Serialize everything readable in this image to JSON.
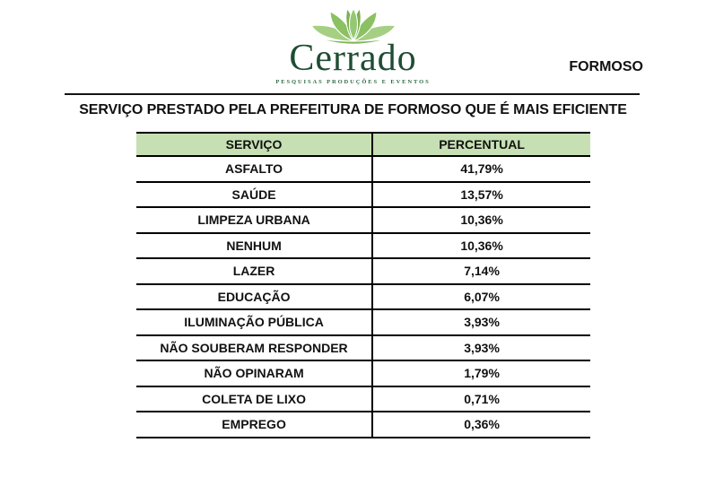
{
  "logo": {
    "wordmark": "Cerrado",
    "tagline": "PESQUISAS PRODUÇÕES E EVENTOS",
    "wordmark_color": "#1f4d33",
    "tagline_color": "#2e6b46",
    "lotus_colors": {
      "outer": "#a5cf82",
      "mid": "#8cc163",
      "inner": "#79b24f",
      "center": "#96c873",
      "base": "#7fb559"
    }
  },
  "region_label": "FORMOSO",
  "title": "SERVIÇO PRESTADO PELA PREFEITURA DE FORMOSO QUE É MAIS EFICIENTE",
  "table": {
    "header_bg": "#c6e0b4",
    "columns": [
      "SERVIÇO",
      "PERCENTUAL"
    ],
    "rows": [
      {
        "service": "ASFALTO",
        "percentual": "41,79%"
      },
      {
        "service": "SAÚDE",
        "percentual": "13,57%"
      },
      {
        "service": "LIMPEZA URBANA",
        "percentual": "10,36%"
      },
      {
        "service": "NENHUM",
        "percentual": "10,36%"
      },
      {
        "service": "LAZER",
        "percentual": "7,14%"
      },
      {
        "service": "EDUCAÇÃO",
        "percentual": "6,07%"
      },
      {
        "service": "ILUMINAÇÃO PÚBLICA",
        "percentual": "3,93%"
      },
      {
        "service": "NÃO SOUBERAM RESPONDER",
        "percentual": "3,93%"
      },
      {
        "service": "NÃO OPINARAM",
        "percentual": "1,79%"
      },
      {
        "service": "COLETA DE LIXO",
        "percentual": "0,71%"
      },
      {
        "service": "EMPREGO",
        "percentual": "0,36%"
      }
    ]
  },
  "chart_data": {
    "type": "table",
    "title": "SERVIÇO PRESTADO PELA PREFEITURA DE FORMOSO QUE É MAIS EFICIENTE",
    "columns": [
      "SERVIÇO",
      "PERCENTUAL"
    ],
    "categories": [
      "ASFALTO",
      "SAÚDE",
      "LIMPEZA URBANA",
      "NENHUM",
      "LAZER",
      "EDUCAÇÃO",
      "ILUMINAÇÃO PÚBLICA",
      "NÃO SOUBERAM RESPONDER",
      "NÃO OPINARAM",
      "COLETA DE LIXO",
      "EMPREGO"
    ],
    "values_percent": [
      41.79,
      13.57,
      10.36,
      10.36,
      7.14,
      6.07,
      3.93,
      3.93,
      1.79,
      0.71,
      0.36
    ]
  }
}
